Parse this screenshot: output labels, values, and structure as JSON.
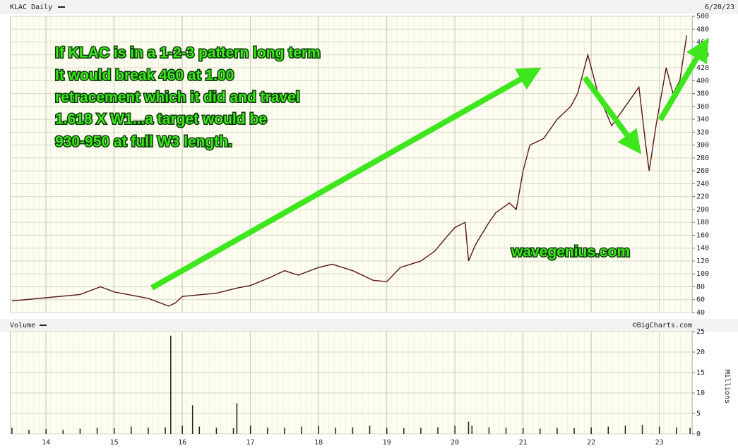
{
  "chart_data": [
    {
      "type": "line",
      "title": "KLAC Daily",
      "date": "6/20/23",
      "annotations": [
        "If KLAC is in a 1-2-3 pattern long term",
        "It would break 460 at 1.00",
        "retracement which it did and travel",
        "1.618 X W1...a target would be",
        "930-950 at full W3 length."
      ],
      "watermark": "wavegenius.com",
      "xlim": [
        13.48,
        23.48
      ],
      "ylim": [
        40,
        500
      ],
      "yticks": [
        40,
        60,
        80,
        100,
        120,
        140,
        160,
        180,
        200,
        220,
        240,
        260,
        280,
        300,
        320,
        340,
        360,
        380,
        400,
        420,
        440,
        460,
        480,
        500
      ],
      "grid": true,
      "series": [
        {
          "name": "KLAC Daily",
          "color": "#5a1616",
          "x": [
            13.5,
            14.0,
            14.5,
            14.8,
            15.0,
            15.5,
            15.8,
            15.9,
            16.0,
            16.5,
            16.8,
            17.0,
            17.3,
            17.5,
            17.7,
            18.0,
            18.2,
            18.5,
            18.8,
            19.0,
            19.2,
            19.5,
            19.7,
            19.9,
            20.0,
            20.15,
            20.2,
            20.3,
            20.5,
            20.6,
            20.8,
            20.9,
            21.0,
            21.1,
            21.3,
            21.5,
            21.7,
            21.8,
            21.95,
            22.1,
            22.3,
            22.5,
            22.7,
            22.8,
            22.85,
            22.95,
            23.1,
            23.2,
            23.3,
            23.4
          ],
          "values": [
            58,
            63,
            68,
            80,
            72,
            62,
            50,
            55,
            65,
            70,
            78,
            82,
            95,
            105,
            98,
            110,
            115,
            105,
            90,
            88,
            110,
            120,
            135,
            160,
            172,
            180,
            120,
            145,
            180,
            195,
            210,
            200,
            260,
            300,
            310,
            340,
            360,
            380,
            440,
            380,
            330,
            360,
            390,
            300,
            260,
            330,
            420,
            380,
            400,
            470
          ]
        }
      ]
    },
    {
      "type": "bar",
      "title": "Volume",
      "credit": "©BigCharts.com",
      "y_label": "Millions",
      "xlim": [
        13.48,
        23.48
      ],
      "ylim": [
        0,
        25
      ],
      "xticks": [
        14,
        15,
        16,
        17,
        18,
        19,
        20,
        21,
        22,
        23
      ],
      "yticks": [
        0,
        5,
        10,
        15,
        20,
        25
      ],
      "grid": true,
      "series": [
        {
          "name": "Volume",
          "color": "#222222",
          "x": [
            13.5,
            13.75,
            14,
            14.25,
            14.5,
            14.75,
            15,
            15.25,
            15.5,
            15.75,
            15.83,
            16,
            16.15,
            16.25,
            16.5,
            16.75,
            16.8,
            17,
            17.25,
            17.5,
            17.75,
            18,
            18.25,
            18.5,
            18.75,
            19,
            19.25,
            19.5,
            19.75,
            20,
            20.2,
            20.25,
            20.5,
            20.75,
            21,
            21.25,
            21.5,
            21.75,
            22,
            22.25,
            22.5,
            22.75,
            23,
            23.25,
            23.45
          ],
          "values": [
            1.5,
            1,
            1.2,
            1,
            1.3,
            1.5,
            1.4,
            1.8,
            1.5,
            1.6,
            24,
            2,
            7,
            1.8,
            1.5,
            1.4,
            7.5,
            2,
            1.5,
            1.5,
            1.8,
            2,
            1.5,
            1.6,
            2,
            1.5,
            1.4,
            1.5,
            1.6,
            2,
            3,
            2,
            1.6,
            1.5,
            1.4,
            1.3,
            1.5,
            1.4,
            1.6,
            1.8,
            2,
            2.2,
            1.8,
            1.6,
            1.5
          ]
        }
      ]
    }
  ]
}
